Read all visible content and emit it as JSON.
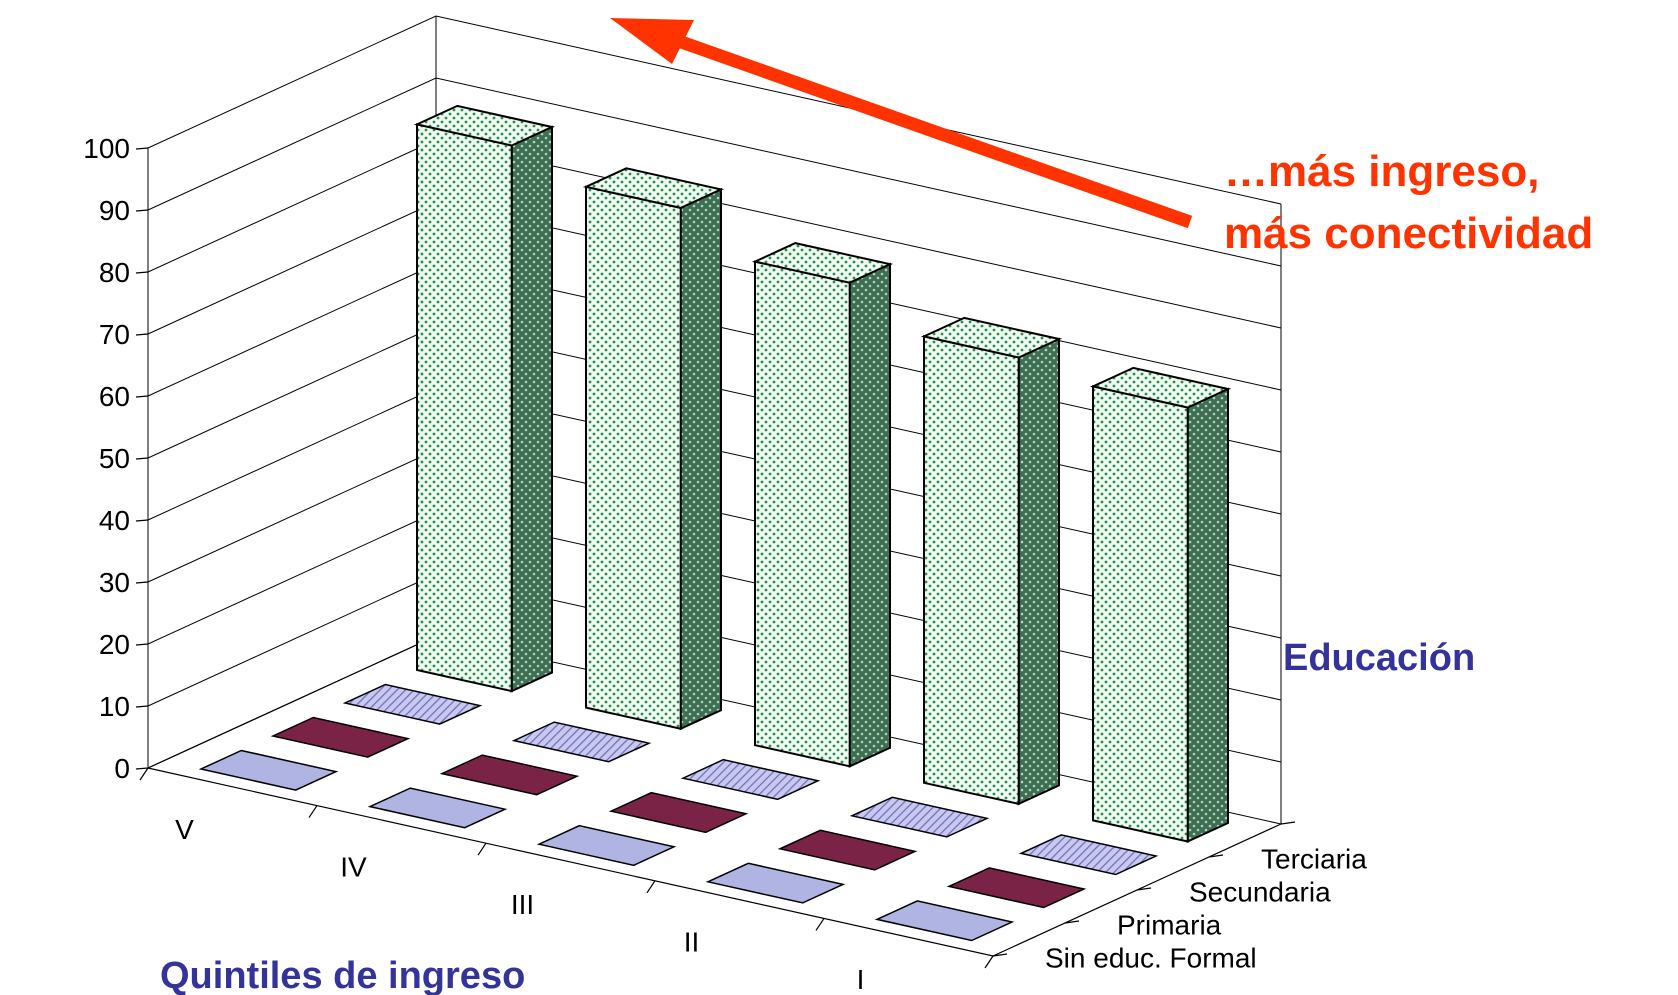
{
  "chart_data": {
    "type": "bar",
    "three_d": true,
    "x_axis_title": "Quintiles de ingreso",
    "depth_axis_title": "Educación",
    "x_categories": [
      "V",
      "IV",
      "III",
      "II",
      "I"
    ],
    "depth_categories": [
      "Sin educ. Formal",
      "Primaria",
      "Secundaria",
      "Terciaria"
    ],
    "y_ticks": [
      "0",
      "10",
      "20",
      "30",
      "40",
      "50",
      "60",
      "70",
      "80",
      "90",
      "100"
    ],
    "ylim": [
      0,
      100
    ],
    "grid": true,
    "series": [
      {
        "name": "Sin educ. Formal",
        "values": [
          0,
          0,
          0,
          0,
          0
        ]
      },
      {
        "name": "Primaria",
        "values": [
          0,
          0,
          0,
          0,
          0
        ]
      },
      {
        "name": "Secundaria",
        "values": [
          0,
          0,
          0,
          0,
          0
        ]
      },
      {
        "name": "Terciaria",
        "values": [
          88,
          84,
          78,
          72,
          70
        ]
      }
    ],
    "annotation": {
      "line1": "…más ingreso,",
      "line2": "más conectividad",
      "color": "#ff3300"
    },
    "colors": {
      "sin_educ": "#aeb2e0",
      "primaria": "#7a2346",
      "secundaria": "#b6b8e8",
      "terciaria_front": "#e8f6ea",
      "terciaria_side": "#3f6e55",
      "terciaria_dots": "#2e8b57",
      "axis_title": "#333399"
    }
  }
}
